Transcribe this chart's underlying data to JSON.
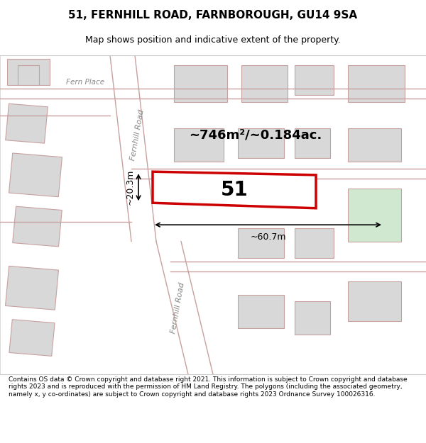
{
  "title_line1": "51, FERNHILL ROAD, FARNBOROUGH, GU14 9SA",
  "title_line2": "Map shows position and indicative extent of the property.",
  "footer_text": "Contains OS data © Crown copyright and database right 2021. This information is subject to Crown copyright and database rights 2023 and is reproduced with the permission of HM Land Registry. The polygons (including the associated geometry, namely x, y co-ordinates) are subject to Crown copyright and database rights 2023 Ordnance Survey 100026316.",
  "map_bg": "#ffffff",
  "area_label": "~746m²/~0.184ac.",
  "width_label": "~60.7m",
  "height_label": "~20.3m",
  "plot_number": "51",
  "plot_rect_color": "#cc0000",
  "road_line_color": "#c8a0a0",
  "building_fill": "#d8d8d8",
  "building_edge": "#c8a0a0",
  "road_label1": "Fernhill Road",
  "road_label2": "Fernhill Road",
  "fern_place_label": "Fern Place",
  "green_patch_color": "#d0e8d0",
  "title_bg": "#ffffff",
  "footer_bg": "#ffffff"
}
